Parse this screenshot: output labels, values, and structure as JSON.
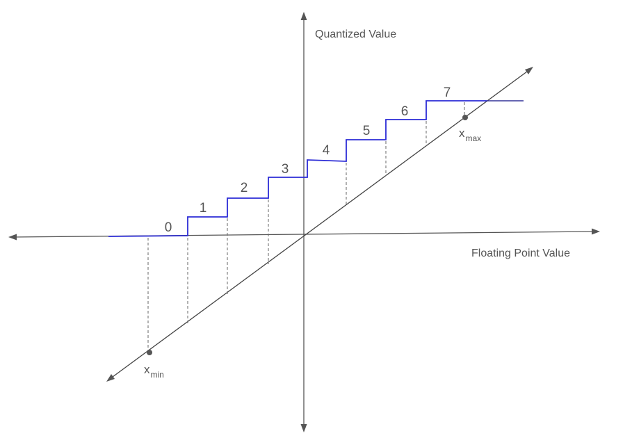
{
  "axes": {
    "x_label": "Floating Point Value",
    "y_label": "Quantized Value"
  },
  "levels": [
    "0",
    "1",
    "2",
    "3",
    "4",
    "5",
    "6",
    "7"
  ],
  "points": {
    "min": {
      "base": "x",
      "sub": "min"
    },
    "max": {
      "base": "x",
      "sub": "max"
    }
  },
  "colors": {
    "step_line": "#2b2bd6",
    "axes": "#555555",
    "text": "#555555"
  }
}
